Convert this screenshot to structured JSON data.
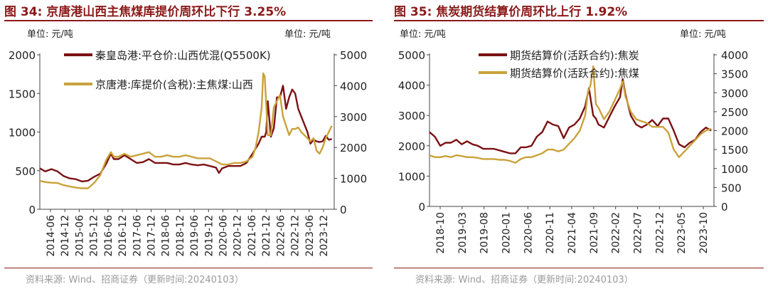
{
  "colors": {
    "series_maroon": "#7b1113",
    "series_gold": "#c9a23a",
    "title": "#8b1a1a",
    "source": "#9a9a9a"
  },
  "left": {
    "title": "图 34:  京唐港山西主焦煤库提价周环比下行 3.25%",
    "unit_left": "单位:  元/吨",
    "unit_right": "单位:  元/吨",
    "source": "资料来源:  Wind、招商证券（更新时间:20240103）"
  },
  "right": {
    "title": "图 35:  焦炭期货结算价周环比上行 1.92%",
    "unit_left": "单位:  元/吨",
    "unit_right": "单位:  元/吨",
    "source": "资料来源:  Wind、招商证券（更新时间:20240103）"
  },
  "chart_data": [
    {
      "type": "line",
      "title": "图 34:  京唐港山西主焦煤库提价周环比下行 3.25%",
      "ylim_left": [
        0,
        2000
      ],
      "ylim_right": [
        0,
        5000
      ],
      "yticks_left": [
        "0",
        "500",
        "1000",
        "1500",
        "2000"
      ],
      "yticks_right": [
        "0",
        "1000",
        "2000",
        "3000",
        "4000",
        "5000"
      ],
      "xlim": [
        2014.42,
        2024.08
      ],
      "x_tick_labels": [
        "2014-06",
        "2014-12",
        "2015-06",
        "2015-12",
        "2016-06",
        "2016-12",
        "2017-06",
        "2017-12",
        "2018-06",
        "2018-12",
        "2019-06",
        "2019-12",
        "2020-06",
        "2020-12",
        "2021-06",
        "2021-12",
        "2022-06",
        "2022-12",
        "2023-06",
        "2023-12"
      ],
      "series": [
        {
          "name": "秦皇岛港:平仓价:山西优混(Q5500K)",
          "axis": "left",
          "color": "#7b1113",
          "x": [
            2014.42,
            2014.6,
            2014.8,
            2015.0,
            2015.2,
            2015.4,
            2015.6,
            2015.8,
            2016.0,
            2016.2,
            2016.4,
            2016.6,
            2016.75,
            2016.85,
            2017.0,
            2017.2,
            2017.4,
            2017.6,
            2017.8,
            2018.0,
            2018.2,
            2018.4,
            2018.6,
            2018.8,
            2019.0,
            2019.2,
            2019.4,
            2019.6,
            2019.8,
            2020.0,
            2020.2,
            2020.3,
            2020.4,
            2020.6,
            2020.8,
            2021.0,
            2021.2,
            2021.4,
            2021.6,
            2021.7,
            2021.8,
            2021.85,
            2021.9,
            2022.0,
            2022.1,
            2022.2,
            2022.3,
            2022.4,
            2022.5,
            2022.6,
            2022.7,
            2022.8,
            2022.9,
            2023.0,
            2023.1,
            2023.2,
            2023.3,
            2023.4,
            2023.5,
            2023.6,
            2023.7,
            2023.8,
            2023.9,
            2024.0
          ],
          "values": [
            530,
            490,
            520,
            490,
            430,
            400,
            390,
            360,
            370,
            420,
            460,
            590,
            720,
            650,
            650,
            700,
            650,
            600,
            610,
            650,
            600,
            600,
            600,
            580,
            580,
            600,
            580,
            570,
            580,
            560,
            540,
            470,
            530,
            560,
            560,
            560,
            600,
            720,
            850,
            940,
            940,
            1000,
            1400,
            940,
            1050,
            1450,
            1450,
            1600,
            1300,
            1450,
            1550,
            1500,
            1300,
            1200,
            1100,
            1000,
            850,
            900,
            880,
            870,
            880,
            950,
            900,
            910
          ]
        },
        {
          "name": "京唐港:库提价(含税):主焦煤:山西",
          "axis": "right",
          "color": "#c9a23a",
          "x": [
            2014.42,
            2014.6,
            2014.8,
            2015.0,
            2015.2,
            2015.4,
            2015.6,
            2015.8,
            2016.0,
            2016.2,
            2016.4,
            2016.6,
            2016.75,
            2016.85,
            2017.0,
            2017.2,
            2017.4,
            2017.6,
            2017.8,
            2018.0,
            2018.2,
            2018.4,
            2018.6,
            2018.8,
            2019.0,
            2019.2,
            2019.4,
            2019.6,
            2019.8,
            2020.0,
            2020.2,
            2020.4,
            2020.6,
            2020.8,
            2021.0,
            2021.2,
            2021.4,
            2021.5,
            2021.6,
            2021.7,
            2021.75,
            2021.8,
            2021.9,
            2022.0,
            2022.1,
            2022.2,
            2022.3,
            2022.4,
            2022.5,
            2022.6,
            2022.7,
            2022.8,
            2022.9,
            2023.0,
            2023.1,
            2023.2,
            2023.3,
            2023.4,
            2023.5,
            2023.6,
            2023.7,
            2023.8,
            2023.9,
            2024.0
          ],
          "values": [
            920,
            880,
            860,
            850,
            780,
            740,
            700,
            680,
            680,
            850,
            1100,
            1600,
            1850,
            1700,
            1700,
            1800,
            1700,
            1750,
            1800,
            1850,
            1700,
            1700,
            1750,
            1700,
            1700,
            1750,
            1700,
            1650,
            1650,
            1650,
            1550,
            1450,
            1450,
            1500,
            1500,
            1550,
            1700,
            2000,
            2500,
            3300,
            4400,
            4300,
            2400,
            2400,
            3300,
            3500,
            3700,
            3000,
            2700,
            2400,
            2600,
            2600,
            2650,
            2500,
            2400,
            2300,
            2200,
            2300,
            1900,
            1800,
            2000,
            2300,
            2500,
            2700
          ]
        }
      ]
    },
    {
      "type": "line",
      "title": "图 35:  焦炭期货结算价周环比上行 1.92%",
      "ylim_left": [
        0,
        5000
      ],
      "ylim_right": [
        0,
        4000
      ],
      "yticks_left": [
        "0",
        "1000",
        "2000",
        "3000",
        "4000",
        "5000"
      ],
      "yticks_right": [
        "0",
        "500",
        "1000",
        "1500",
        "2000",
        "2500",
        "3000",
        "3500",
        "4000"
      ],
      "xlim": [
        2018.75,
        2024.05
      ],
      "x_tick_labels": [
        "2018-10",
        "2019-03",
        "2019-08",
        "2020-01",
        "2020-06",
        "2020-11",
        "2021-04",
        "2021-09",
        "2022-02",
        "2022-07",
        "2022-12",
        "2023-05",
        "2023-10"
      ],
      "series": [
        {
          "name": "期货结算价(活跃合约):焦炭",
          "axis": "left",
          "color": "#7b1113",
          "x": [
            2018.75,
            2018.85,
            2018.95,
            2019.05,
            2019.15,
            2019.25,
            2019.35,
            2019.45,
            2019.55,
            2019.65,
            2019.75,
            2019.85,
            2019.95,
            2020.05,
            2020.15,
            2020.25,
            2020.35,
            2020.45,
            2020.55,
            2020.65,
            2020.75,
            2020.85,
            2020.95,
            2021.05,
            2021.15,
            2021.25,
            2021.35,
            2021.45,
            2021.55,
            2021.65,
            2021.72,
            2021.8,
            2021.85,
            2021.9,
            2022.0,
            2022.1,
            2022.2,
            2022.3,
            2022.35,
            2022.4,
            2022.5,
            2022.6,
            2022.7,
            2022.8,
            2022.9,
            2023.0,
            2023.1,
            2023.2,
            2023.3,
            2023.4,
            2023.5,
            2023.6,
            2023.7,
            2023.8,
            2023.9,
            2024.0
          ],
          "values": [
            2450,
            2300,
            2000,
            2100,
            2100,
            2200,
            2050,
            2150,
            2050,
            2000,
            1900,
            1900,
            1900,
            1850,
            1800,
            1750,
            1750,
            1950,
            1950,
            2000,
            2300,
            2450,
            2800,
            2700,
            2650,
            2250,
            2600,
            2700,
            2900,
            3300,
            3900,
            3000,
            2900,
            2700,
            2600,
            2950,
            3300,
            3600,
            4200,
            3700,
            3000,
            2700,
            2600,
            2700,
            2850,
            2650,
            2900,
            2900,
            2500,
            2050,
            1950,
            2100,
            2200,
            2450,
            2600,
            2500
          ]
        },
        {
          "name": "期货结算价(活跃合约):焦煤",
          "axis": "right",
          "color": "#c9a23a",
          "x": [
            2018.75,
            2018.85,
            2018.95,
            2019.05,
            2019.15,
            2019.25,
            2019.35,
            2019.45,
            2019.55,
            2019.65,
            2019.75,
            2019.85,
            2019.95,
            2020.05,
            2020.15,
            2020.25,
            2020.35,
            2020.45,
            2020.55,
            2020.65,
            2020.75,
            2020.85,
            2020.95,
            2021.05,
            2021.15,
            2021.25,
            2021.35,
            2021.45,
            2021.55,
            2021.65,
            2021.7,
            2021.75,
            2021.8,
            2021.85,
            2021.9,
            2022.0,
            2022.1,
            2022.2,
            2022.3,
            2022.35,
            2022.4,
            2022.5,
            2022.6,
            2022.7,
            2022.8,
            2022.9,
            2023.0,
            2023.1,
            2023.2,
            2023.3,
            2023.4,
            2023.5,
            2023.6,
            2023.7,
            2023.8,
            2023.9,
            2024.0
          ],
          "values": [
            1350,
            1300,
            1300,
            1330,
            1300,
            1350,
            1330,
            1300,
            1300,
            1280,
            1250,
            1250,
            1250,
            1230,
            1230,
            1200,
            1150,
            1250,
            1300,
            1300,
            1350,
            1400,
            1500,
            1500,
            1450,
            1500,
            1650,
            1800,
            2000,
            2400,
            3000,
            3200,
            3700,
            2700,
            2600,
            2300,
            2500,
            2800,
            3100,
            3300,
            2900,
            2500,
            2300,
            2250,
            2200,
            2100,
            2100,
            2100,
            1950,
            1500,
            1300,
            1450,
            1600,
            1750,
            1900,
            2000,
            2050
          ]
        }
      ]
    }
  ]
}
